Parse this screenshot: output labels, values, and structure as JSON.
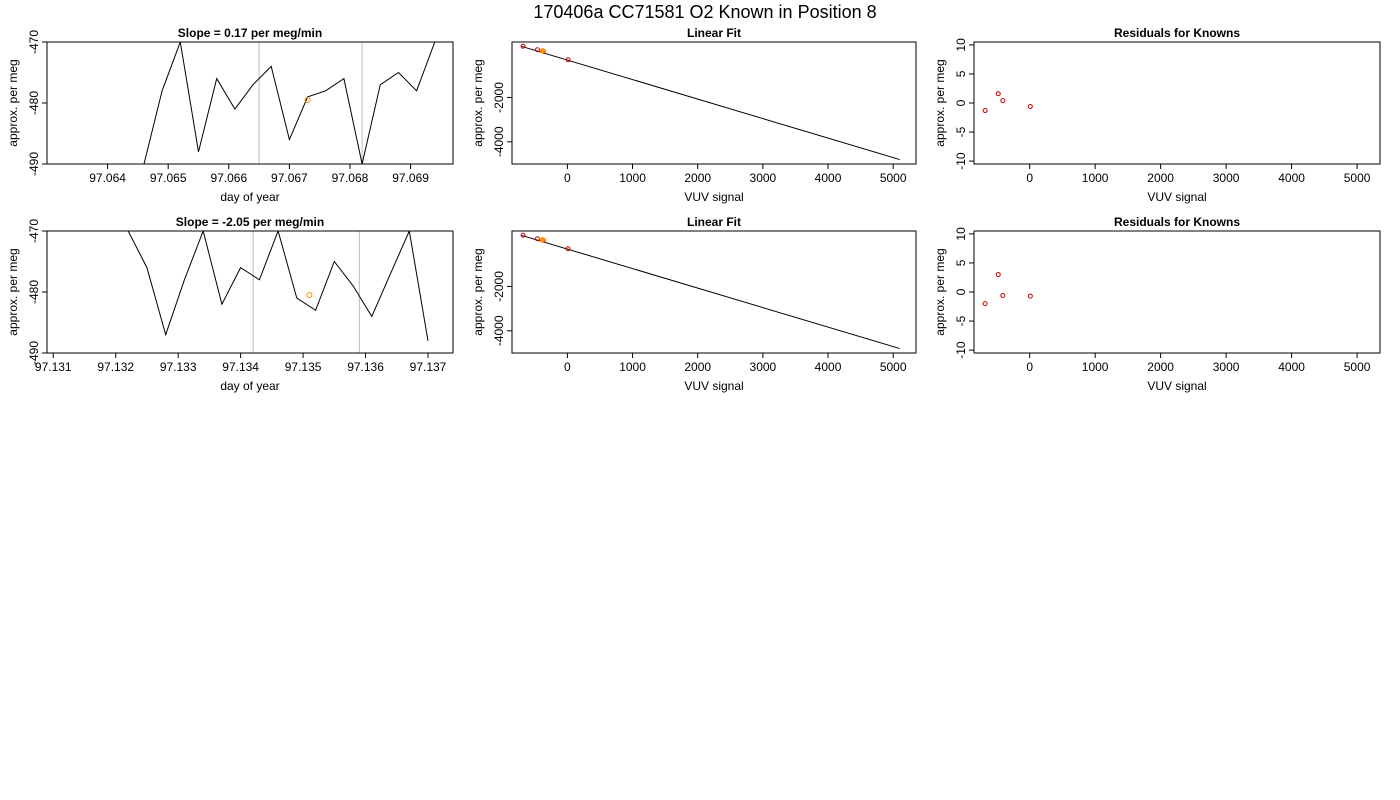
{
  "page_title": "170406a      CC71581   O2 Known in Position  8",
  "colors": {
    "line": "#000000",
    "marker_red": "#cc0000",
    "marker_orange": "#ff8c00",
    "guide": "#bbbbbb"
  },
  "chart_data": [
    {
      "type": "line",
      "title": "Slope =  0.17  per meg/min",
      "xlabel": "day of year",
      "ylabel": "approx. per meg",
      "xlim": [
        97.063,
        97.0697
      ],
      "ylim": [
        -490,
        -470
      ],
      "xticks": [
        "97.064",
        "97.065",
        "97.066",
        "97.067",
        "97.068",
        "97.069"
      ],
      "yticks": [
        "-490",
        "-480",
        "-470"
      ],
      "vlines": [
        97.0665,
        97.0682
      ],
      "highlight": {
        "x": 97.0673,
        "y": -479.5
      },
      "series": [
        {
          "values_x": [
            97.0646,
            97.0649,
            97.0652,
            97.0655,
            97.0658,
            97.0661,
            97.0664,
            97.0667,
            97.067,
            97.0673,
            97.0676,
            97.0679,
            97.0682,
            97.0685,
            97.0688,
            97.0691,
            97.0694
          ],
          "values_y": [
            -490,
            -478,
            -470,
            -488,
            -476,
            -481,
            -477,
            -474,
            -486,
            -479,
            -478,
            -476,
            -490,
            -477,
            -475,
            -478,
            -470
          ]
        }
      ]
    },
    {
      "type": "scatter",
      "title": "Linear Fit",
      "xlabel": "VUV signal",
      "ylabel": "approx. per meg",
      "xlim": [
        -850,
        5350
      ],
      "ylim": [
        -5000,
        500
      ],
      "xticks": [
        "0",
        "1000",
        "2000",
        "3000",
        "4000",
        "5000"
      ],
      "yticks": [
        "-4000",
        "-2000"
      ],
      "fit_line": {
        "x": [
          -700,
          5100
        ],
        "y": [
          300,
          -4800
        ]
      },
      "points_red": [
        [
          -680,
          310
        ],
        [
          -460,
          150
        ],
        [
          -370,
          80
        ],
        [
          10,
          -300
        ]
      ],
      "points_orange": [
        [
          -380,
          100
        ]
      ]
    },
    {
      "type": "scatter",
      "title": "Residuals for Knowns",
      "xlabel": "VUV signal",
      "ylabel": "approx. per meg",
      "xlim": [
        -850,
        5350
      ],
      "ylim": [
        -10.5,
        10.5
      ],
      "xticks": [
        "0",
        "1000",
        "2000",
        "3000",
        "4000",
        "5000"
      ],
      "yticks": [
        "-10",
        "-5",
        "0",
        "5",
        "10"
      ],
      "points_red": [
        [
          -680,
          -1.3
        ],
        [
          -480,
          1.6
        ],
        [
          -410,
          0.4
        ],
        [
          10,
          -0.6
        ]
      ]
    },
    {
      "type": "line",
      "title": "Slope =  -2.05  per meg/min",
      "xlabel": "day of year",
      "ylabel": "approx. per meg",
      "xlim": [
        97.1309,
        97.1374
      ],
      "ylim": [
        -490,
        -470
      ],
      "xticks": [
        "97.131",
        "97.132",
        "97.133",
        "97.134",
        "97.135",
        "97.136",
        "97.137"
      ],
      "yticks": [
        "-490",
        "-480",
        "-470"
      ],
      "vlines": [
        97.1342,
        97.1359
      ],
      "highlight": {
        "x": 97.1351,
        "y": -480.5
      },
      "series": [
        {
          "values_x": [
            97.1322,
            97.1325,
            97.1328,
            97.1331,
            97.1334,
            97.1337,
            97.134,
            97.1343,
            97.1346,
            97.1349,
            97.1352,
            97.1355,
            97.1358,
            97.1361,
            97.1364,
            97.1367,
            97.137
          ],
          "values_y": [
            -470,
            -476,
            -487,
            -478,
            -470,
            -482,
            -476,
            -478,
            -470,
            -481,
            -483,
            -475,
            -479,
            -484,
            -477,
            -470,
            -488
          ]
        }
      ]
    },
    {
      "type": "scatter",
      "title": "Linear Fit",
      "xlabel": "VUV signal",
      "ylabel": "approx. per meg",
      "xlim": [
        -850,
        5350
      ],
      "ylim": [
        -5000,
        500
      ],
      "xticks": [
        "0",
        "1000",
        "2000",
        "3000",
        "4000",
        "5000"
      ],
      "yticks": [
        "-4000",
        "-2000"
      ],
      "fit_line": {
        "x": [
          -700,
          5100
        ],
        "y": [
          300,
          -4800
        ]
      },
      "points_red": [
        [
          -680,
          310
        ],
        [
          -460,
          150
        ],
        [
          -370,
          80
        ],
        [
          10,
          -300
        ]
      ],
      "points_orange": [
        [
          -380,
          100
        ]
      ]
    },
    {
      "type": "scatter",
      "title": "Residuals for Knowns",
      "xlabel": "VUV signal",
      "ylabel": "approx. per meg",
      "xlim": [
        -850,
        5350
      ],
      "ylim": [
        -10.5,
        10.5
      ],
      "xticks": [
        "0",
        "1000",
        "2000",
        "3000",
        "4000",
        "5000"
      ],
      "yticks": [
        "-10",
        "-5",
        "0",
        "5",
        "10"
      ],
      "points_red": [
        [
          -680,
          -2.0
        ],
        [
          -480,
          3.0
        ],
        [
          -410,
          -0.6
        ],
        [
          10,
          -0.7
        ]
      ]
    }
  ]
}
